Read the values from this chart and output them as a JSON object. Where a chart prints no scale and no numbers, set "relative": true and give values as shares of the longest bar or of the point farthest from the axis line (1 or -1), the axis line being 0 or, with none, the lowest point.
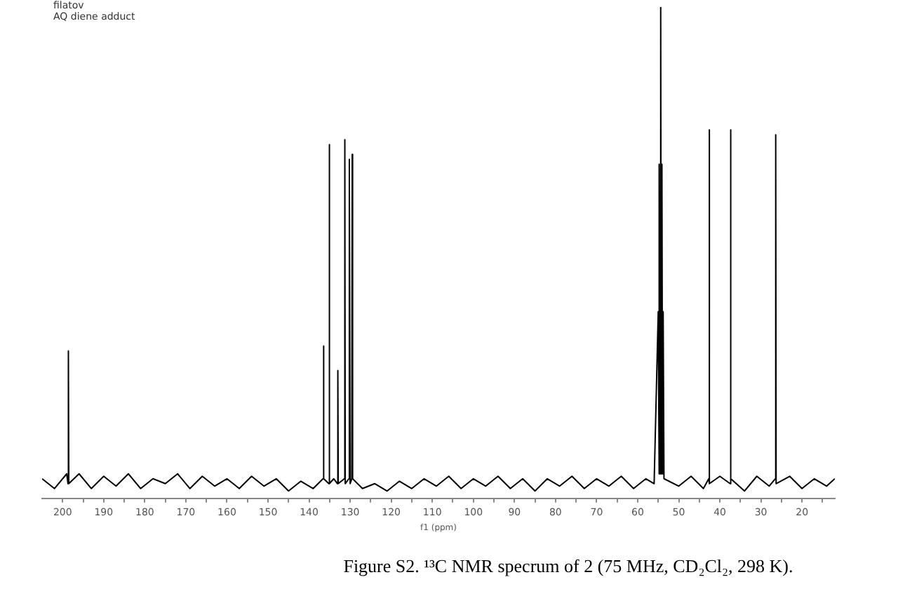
{
  "chart_data": {
    "type": "line",
    "relative": true,
    "xlabel": "f1 (ppm)",
    "annotations": [
      "filatov",
      "AQ diene adduct",
      "Figure S2. ¹³C NMR specrum of 2 (75 MHz, CD₂Cl₂, 298 K)."
    ],
    "xlim": [
      205,
      12
    ],
    "xticks": [
      200,
      {
        "value": 195,
        "label": null
      },
      190,
      {
        "value": 185,
        "label": null
      },
      180,
      {
        "value": 175,
        "label": null
      },
      170,
      {
        "value": 165,
        "label": null
      },
      160,
      {
        "value": 155,
        "label": null
      },
      150,
      {
        "value": 145,
        "label": null
      },
      140,
      {
        "value": 135,
        "label": null
      },
      130,
      {
        "value": 125,
        "label": null
      },
      120,
      {
        "value": 115,
        "label": null
      },
      110,
      {
        "value": 105,
        "label": null
      },
      100,
      {
        "value": 95,
        "label": null
      },
      90,
      {
        "value": 85,
        "label": null
      },
      80,
      {
        "value": 75,
        "label": null
      },
      70,
      {
        "value": 65,
        "label": null
      },
      60,
      {
        "value": 55,
        "label": null
      },
      50,
      {
        "value": 45,
        "label": null
      },
      40,
      {
        "value": 35,
        "label": null
      },
      30,
      {
        "value": 25,
        "label": null
      },
      20,
      {
        "value": 15,
        "label": null
      }
    ],
    "series": [
      {
        "color": "#000000",
        "x": [
          205,
          202,
          199,
          198.7,
          198.6,
          198.5,
          196,
          193,
          190,
          187,
          184,
          181,
          178,
          175,
          172,
          169,
          166,
          163,
          160,
          157,
          154,
          151,
          148,
          145,
          142,
          139,
          136.6,
          136.5,
          136.4,
          135.2,
          135.1,
          135.0,
          134,
          133.1,
          133.0,
          132.9,
          131.4,
          131.3,
          131.2,
          130.3,
          130.2,
          130.0,
          129.6,
          129.5,
          129.4,
          127,
          124,
          121,
          118,
          115,
          112,
          109,
          106,
          103,
          100,
          97,
          94,
          91,
          88,
          85,
          82,
          79,
          76,
          73,
          70,
          67,
          64,
          61,
          58,
          56,
          55.0,
          54.85,
          54.7,
          54.55,
          54.4,
          54.25,
          54.1,
          53.95,
          53.8,
          53.6,
          50,
          47,
          44,
          42.7,
          42.6,
          42.5,
          40,
          37.5,
          37.4,
          37.3,
          34,
          31,
          28,
          26.5,
          26.4,
          26.3,
          23,
          20,
          17,
          14,
          12
        ],
        "values": [
          0.04,
          0.02,
          0.05,
          0.03,
          0.3,
          0.03,
          0.05,
          0.02,
          0.045,
          0.025,
          0.05,
          0.02,
          0.04,
          0.03,
          0.05,
          0.02,
          0.045,
          0.025,
          0.04,
          0.02,
          0.045,
          0.025,
          0.04,
          0.015,
          0.035,
          0.02,
          0.04,
          0.31,
          0.04,
          0.03,
          0.72,
          0.03,
          0.04,
          0.03,
          0.26,
          0.03,
          0.04,
          0.73,
          0.03,
          0.04,
          0.69,
          0.03,
          0.04,
          0.7,
          0.04,
          0.02,
          0.03,
          0.015,
          0.035,
          0.02,
          0.04,
          0.025,
          0.045,
          0.02,
          0.04,
          0.025,
          0.045,
          0.02,
          0.04,
          0.015,
          0.04,
          0.025,
          0.045,
          0.02,
          0.04,
          0.025,
          0.045,
          0.02,
          0.04,
          0.03,
          0.38,
          0.05,
          0.68,
          0.05,
          1,
          0.05,
          0.68,
          0.05,
          0.38,
          0.04,
          0.025,
          0.045,
          0.02,
          0.04,
          0.75,
          0.03,
          0.045,
          0.03,
          0.75,
          0.04,
          0.015,
          0.045,
          0.025,
          0.04,
          0.74,
          0.03,
          0.045,
          0.02,
          0.04,
          0.025,
          0.04
        ]
      }
    ]
  }
}
